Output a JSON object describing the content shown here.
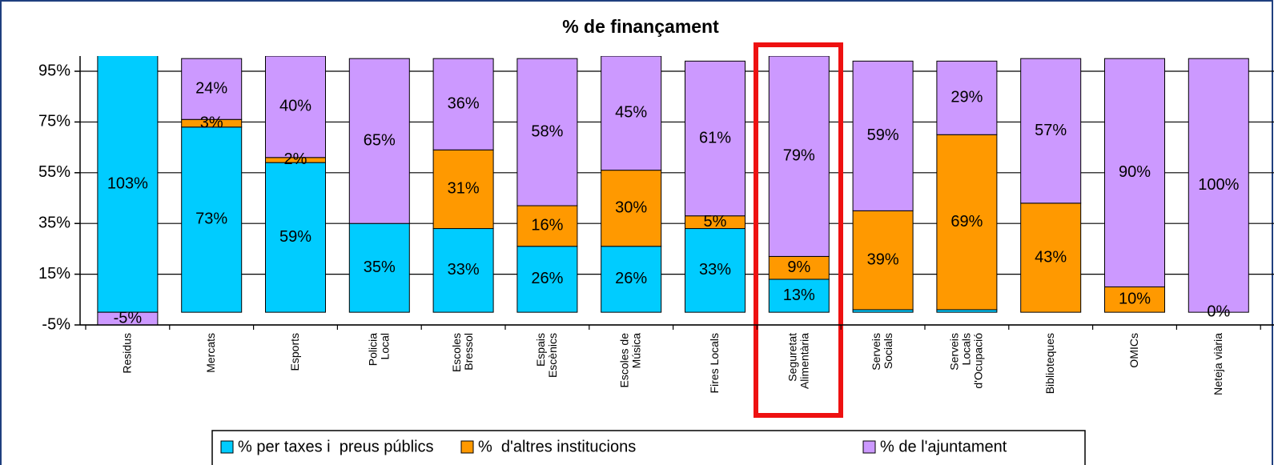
{
  "chart_data": {
    "type": "stacked-bar",
    "title": "% de finançament",
    "categories": [
      "Residus",
      "Mercats",
      "Esports",
      "Policia\nLocal",
      "Escoles\nBressol",
      "Espais\nEscènics",
      "Escoles de\nMúsica",
      "Fires Locals",
      "Seguretat\nAlimentària",
      "Serveis\nSocials",
      "Serveis\nLocals\nd'Ocupació",
      "Biblioteques",
      "OMICs",
      "Neteja viària"
    ],
    "series": [
      {
        "name": "% per taxes i  preus públics",
        "color": "#00ccff",
        "values": [
          103,
          73,
          59,
          35,
          33,
          26,
          26,
          33,
          13,
          1,
          1,
          0,
          0,
          0
        ],
        "value_labels": [
          "103%",
          "73%",
          "59%",
          "35%",
          "33%",
          "26%",
          "26%",
          "33%",
          "13%",
          null,
          null,
          null,
          null,
          null
        ]
      },
      {
        "name": "%  d'altres institucions",
        "color": "#ff9900",
        "values": [
          0,
          3,
          2,
          0,
          31,
          16,
          30,
          5,
          9,
          39,
          69,
          43,
          10,
          0
        ],
        "value_labels": [
          null,
          "3%",
          "2%",
          null,
          "31%",
          "16%",
          "30%",
          "5%",
          "9%",
          "39%",
          "69%",
          "43%",
          "10%",
          "0%"
        ]
      },
      {
        "name": "% de l'ajuntament",
        "color": "#cc99ff",
        "values": [
          -5,
          24,
          40,
          65,
          36,
          58,
          45,
          61,
          79,
          59,
          29,
          57,
          90,
          100
        ],
        "value_labels": [
          "-5%",
          "24%",
          "40%",
          "65%",
          "36%",
          "58%",
          "45%",
          "61%",
          "79%",
          "59%",
          "29%",
          "57%",
          "90%",
          "100%"
        ]
      }
    ],
    "ylim": [
      -5,
      101
    ],
    "yticks": [
      {
        "value": -5,
        "label": "-5%"
      },
      {
        "value": 15,
        "label": "15%"
      },
      {
        "value": 35,
        "label": "35%"
      },
      {
        "value": 55,
        "label": "55%"
      },
      {
        "value": 75,
        "label": "75%"
      },
      {
        "value": 95,
        "label": "95%"
      }
    ],
    "grid": true
  }
}
